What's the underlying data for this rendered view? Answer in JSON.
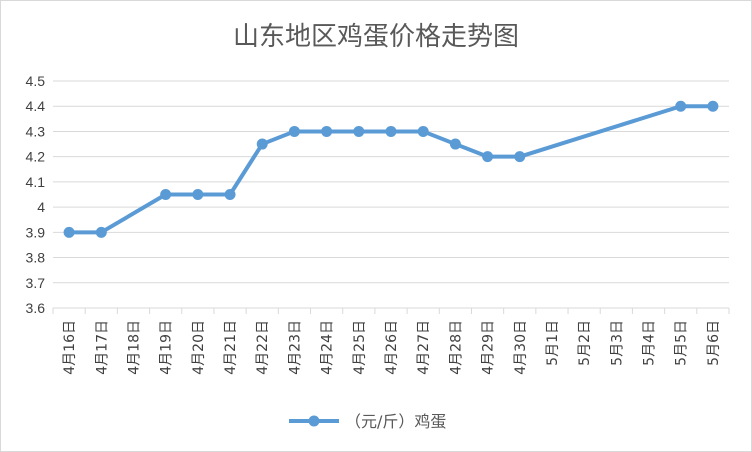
{
  "chart_data": {
    "type": "line",
    "title": "山东地区鸡蛋价格走势图",
    "xlabel": "",
    "ylabel": "",
    "categories": [
      "4月16日",
      "4月17日",
      "4月18日",
      "4月19日",
      "4月20日",
      "4月21日",
      "4月22日",
      "4月23日",
      "4月24日",
      "4月25日",
      "4月26日",
      "4月27日",
      "4月28日",
      "4月29日",
      "4月30日",
      "5月1日",
      "5月2日",
      "5月3日",
      "5月4日",
      "5月5日",
      "5月6日"
    ],
    "series": [
      {
        "name": "（元/斤）鸡蛋",
        "color": "#5b9bd5",
        "values": [
          3.9,
          3.9,
          null,
          4.05,
          4.05,
          4.05,
          4.25,
          4.3,
          4.3,
          4.3,
          4.3,
          4.3,
          4.25,
          4.2,
          4.2,
          null,
          null,
          null,
          null,
          4.4,
          4.4
        ]
      }
    ],
    "ylim": [
      3.6,
      4.5
    ],
    "yticks": [
      "3.6",
      "3.7",
      "3.8",
      "3.9",
      "4",
      "4.1",
      "4.2",
      "4.3",
      "4.4",
      "4.5"
    ],
    "grid": true,
    "legend": "bottom"
  }
}
